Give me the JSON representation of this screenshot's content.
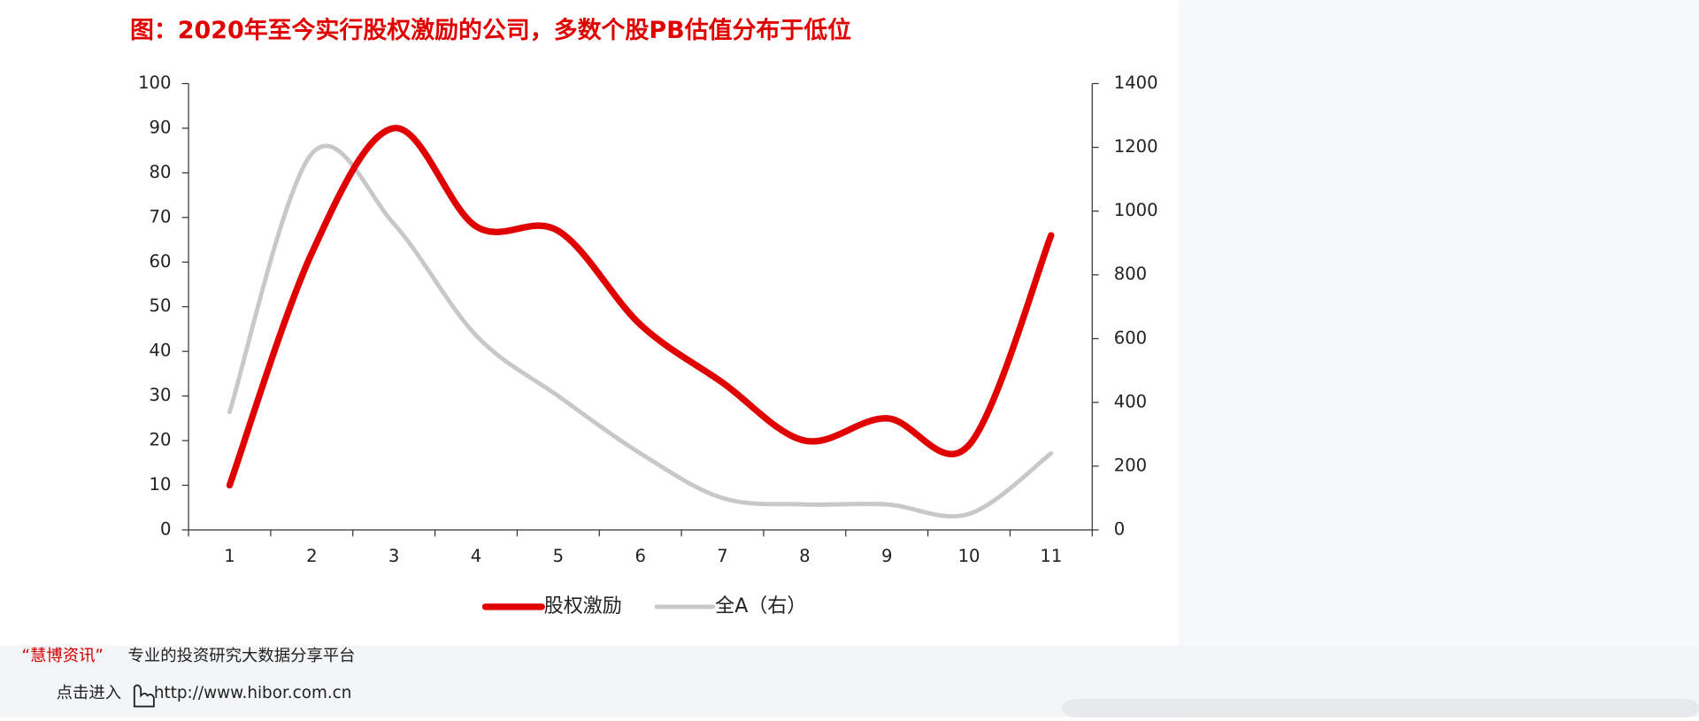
{
  "chart_data": {
    "type": "line",
    "title": "图：2020年至今实行股权激励的公司，多数个股PB估值分布于低位",
    "categories": [
      "1",
      "2",
      "3",
      "4",
      "5",
      "6",
      "7",
      "8",
      "9",
      "10",
      "11"
    ],
    "series": [
      {
        "name": "股权激励",
        "color": "#e00000",
        "values": [
          10,
          62,
          90,
          68,
          67,
          46,
          33,
          20,
          25,
          19,
          66
        ]
      },
      {
        "name": "全A（右）",
        "color": "#c8c8c8",
        "axis": "y2",
        "values": [
          370,
          1180,
          960,
          610,
          420,
          240,
          100,
          80,
          80,
          50,
          240
        ]
      }
    ],
    "ylim": [
      0,
      100
    ],
    "yticks": [
      0,
      10,
      20,
      30,
      40,
      50,
      60,
      70,
      80,
      90,
      100
    ],
    "y2lim": [
      0,
      1400
    ],
    "y2ticks": [
      0,
      200,
      400,
      600,
      800,
      1000,
      1200,
      1400
    ],
    "legend": "bottom",
    "smooth": true
  },
  "footer": {
    "brand": "“慧博资讯”",
    "tagline": "专业的投资研究大数据分享平台",
    "link_prefix": "点击进入",
    "url": "http://www.hibor.com.cn"
  }
}
